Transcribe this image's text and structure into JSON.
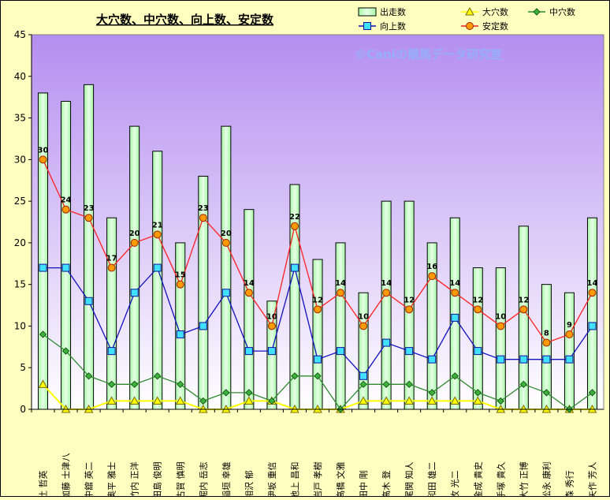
{
  "chart_data": {
    "type": "bar",
    "title": "大穴数、中穴数、向上数、安定数",
    "watermark": "©Caniの競馬データ研究室",
    "ylim": [
      0,
      45
    ],
    "yticks": [
      0,
      5,
      10,
      15,
      20,
      25,
      30,
      35,
      40,
      45
    ],
    "grid": false,
    "legend_position": "top-right",
    "categories": [
      "辻 哲英",
      "加藤 士津八",
      "中舘 英二",
      "奥平 雅士",
      "竹内 正洋",
      "田島 俊明",
      "古賀 慎明",
      "堀内 岳志",
      "稲垣 幸雄",
      "相沢 郁",
      "伊坂 重信",
      "池上 昌和",
      "岩戸 孝樹",
      "高橋 文雅",
      "田中 剛",
      "高木 登",
      "尾関 知人",
      "和田 雄二",
      "牧 光二",
      "金成 貴史",
      "手塚 貴久",
      "大竹 正博",
      "松永 康利",
      "森 秀行",
      "矢作 芳人"
    ],
    "series": [
      {
        "name": "出走数",
        "kind": "bar",
        "color": "#c8fcc8",
        "values": [
          38,
          37,
          39,
          23,
          34,
          31,
          20,
          28,
          34,
          24,
          13,
          27,
          18,
          20,
          14,
          25,
          25,
          20,
          23,
          17,
          17,
          22,
          15,
          14,
          23
        ]
      },
      {
        "name": "大穴数",
        "kind": "line",
        "color": "#ffff00",
        "values": [
          3,
          0,
          0,
          1,
          1,
          1,
          1,
          0,
          0,
          1,
          1,
          0,
          0,
          0,
          1,
          1,
          1,
          1,
          1,
          1,
          0,
          0,
          0,
          0,
          0
        ]
      },
      {
        "name": "中穴数",
        "kind": "line",
        "color": "#2f8a2f",
        "values": [
          9,
          7,
          4,
          3,
          3,
          4,
          3,
          1,
          2,
          2,
          1,
          4,
          4,
          0,
          3,
          3,
          3,
          2,
          4,
          2,
          1,
          3,
          2,
          0,
          2
        ]
      },
      {
        "name": "向上数",
        "kind": "line",
        "color": "#1010c0",
        "values": [
          17,
          17,
          13,
          7,
          14,
          17,
          9,
          10,
          14,
          7,
          7,
          17,
          6,
          7,
          4,
          8,
          7,
          6,
          11,
          7,
          6,
          6,
          6,
          6,
          10
        ]
      },
      {
        "name": "安定数",
        "kind": "line",
        "color": "#ff2020",
        "values": [
          30,
          24,
          23,
          17,
          20,
          21,
          15,
          23,
          20,
          14,
          10,
          22,
          12,
          14,
          10,
          14,
          12,
          16,
          14,
          12,
          10,
          12,
          8,
          9,
          14
        ],
        "labels_shown": true
      }
    ]
  }
}
